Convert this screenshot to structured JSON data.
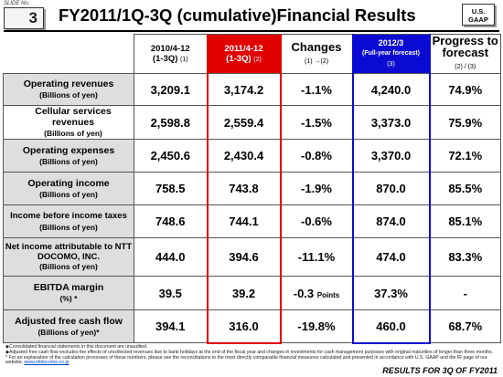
{
  "slide": {
    "slide_no_label": "SLIDE No.",
    "number": "3"
  },
  "title": "FY2011/1Q-3Q (cumulative)Financial Results",
  "gaap_badge": {
    "line1": "U.S.",
    "line2": "GAAP"
  },
  "headers": {
    "col1": {
      "main": "2010/4-12",
      "sub": "(1-3Q)",
      "note": "(1)"
    },
    "col2": {
      "main": "2011/4-12",
      "sub": "(1-3Q)",
      "note": "(2)"
    },
    "col3": {
      "main": "Changes",
      "note": "(1) →(2)"
    },
    "col4": {
      "main": "2012/3",
      "sub": "(Full-year forecast)",
      "note": "(3)"
    },
    "col5": {
      "main": "Progress to forecast",
      "note": "(2) / (3)"
    }
  },
  "rows": [
    {
      "label": "Operating revenues",
      "unit": "(Billions of yen)",
      "v1": "3,209.1",
      "v2": "3,174.2",
      "change": "-1.1%",
      "forecast": "4,240.0",
      "progress": "74.9%"
    },
    {
      "label": "Cellular services revenues",
      "unit": "(Billions of yen)",
      "v1": "2,598.8",
      "v2": "2,559.4",
      "change": "-1.5%",
      "forecast": "3,373.0",
      "progress": "75.9%"
    },
    {
      "label": "Operating expenses",
      "unit": "(Billions of yen)",
      "v1": "2,450.6",
      "v2": "2,430.4",
      "change": "-0.8%",
      "forecast": "3,370.0",
      "progress": "72.1%"
    },
    {
      "label": "Operating income",
      "unit": "(Billions of yen)",
      "v1": "758.5",
      "v2": "743.8",
      "change": "-1.9%",
      "forecast": "870.0",
      "progress": "85.5%"
    },
    {
      "label": "Income before income taxes",
      "unit": "(Billions of yen)",
      "v1": "748.6",
      "v2": "744.1",
      "change": "-0.6%",
      "forecast": "874.0",
      "progress": "85.1%"
    },
    {
      "label": "Net income attributable to NTT DOCOMO, INC.",
      "unit": "(Billions of yen)",
      "v1": "444.0",
      "v2": "394.6",
      "change": "-11.1%",
      "forecast": "474.0",
      "progress": "83.3%"
    },
    {
      "label": "EBITDA margin",
      "unit": "(%) *",
      "v1": "39.5",
      "v2": "39.2",
      "change": "-0.3",
      "change_suffix": "Points",
      "forecast": "37.3%",
      "progress": "-"
    },
    {
      "label": "Adjusted free cash flow",
      "unit": "(Billions of yen)*",
      "v1": "394.1",
      "v2": "316.0",
      "change": "-19.8%",
      "forecast": "460.0",
      "progress": "68.7%"
    }
  ],
  "notes": {
    "n1": "◆Consolidated financial statements in this document are unaudited.",
    "n2": "◆Adjusted free cash flow excludes the effects of uncollected revenues due to bank holidays at the end of the fiscal year and changes in investments for cash management purposes with original maturities of longer than three months.",
    "n3": "* For an explanation of the calculation processes of these numbers, please see the reconciliations to the most directly comparable financial measures calculated and presented in accordance with U.S. GAAP and the IR page of our website,",
    "link": "www.nttdocomo.co.jp"
  },
  "footer": "RESULTS FOR 3Q OF FY2011"
}
